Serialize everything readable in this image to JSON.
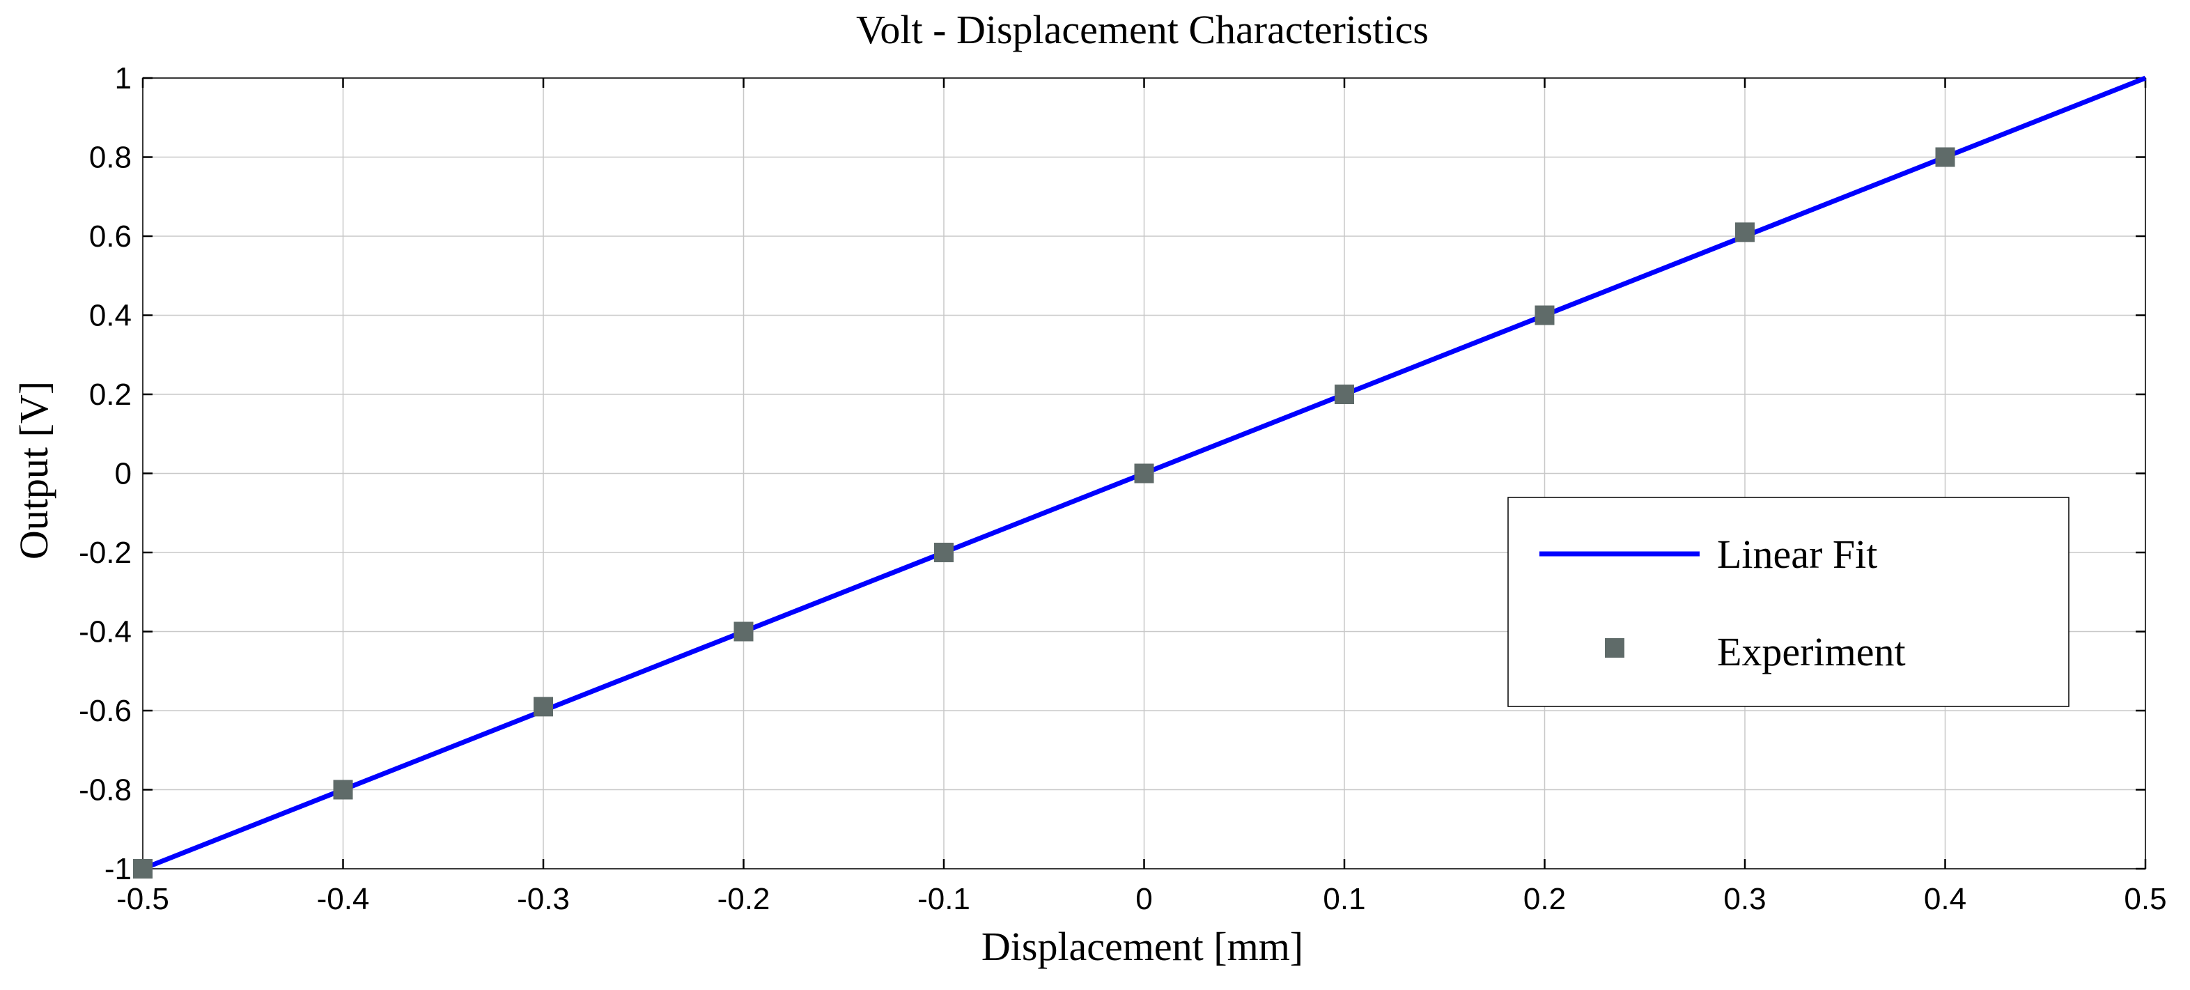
{
  "chart_data": {
    "type": "line",
    "title": "Volt - Displacement  Characteristics",
    "xlabel": "Displacement [mm]",
    "ylabel": "Output [V]",
    "xlim": [
      -0.5,
      0.5
    ],
    "ylim": [
      -1,
      1
    ],
    "grid": true,
    "legend_position": "right",
    "x_ticks": [
      -0.5,
      -0.4,
      -0.3,
      -0.2,
      -0.1,
      0,
      0.1,
      0.2,
      0.3,
      0.4,
      0.5
    ],
    "x_tick_labels": [
      "-0.5",
      "-0.4",
      "-0.3",
      "-0.2",
      "-0.1",
      "0",
      "0.1",
      "0.2",
      "0.3",
      "0.4",
      "0.5"
    ],
    "y_ticks": [
      1,
      0.8,
      0.6,
      0.4,
      0.2,
      0,
      -0.2,
      -0.4,
      -0.6,
      -0.8,
      -1
    ],
    "y_tick_labels": [
      "1",
      "0.8",
      "0.6",
      "0.4",
      "0.2",
      "0",
      "-0.2",
      "-0.4",
      "-0.6",
      "-0.8",
      "-1"
    ],
    "series": [
      {
        "name": "Linear Fit",
        "style": "line",
        "color": "#0000ff",
        "x": [
          -0.5,
          0.5
        ],
        "y": [
          -1,
          1
        ]
      },
      {
        "name": "Experiment",
        "style": "marker-square",
        "color": "#5f6b69",
        "x": [
          -0.5,
          -0.4,
          -0.3,
          -0.2,
          -0.1,
          0,
          0.1,
          0.2,
          0.3,
          0.4
        ],
        "y": [
          -1.0,
          -0.8,
          -0.59,
          -0.4,
          -0.2,
          0.0,
          0.2,
          0.4,
          0.61,
          0.8
        ]
      }
    ]
  }
}
